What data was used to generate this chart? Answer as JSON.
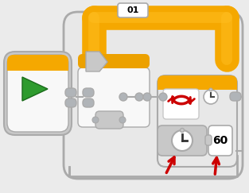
{
  "bg_color": "#ebebeb",
  "orange": "#F5A800",
  "orange_stripe": "#E8A000",
  "gray_light": "#f0f0f0",
  "gray_body": "#e8e8e8",
  "gray_mid": "#c8c8c8",
  "gray_dark": "#aaaaaa",
  "gray_connector": "#b0b4b8",
  "green": "#3A9A3A",
  "red_arrow": "#CC0000",
  "white": "#FFFFFF",
  "title_text": "01",
  "label_text": "60"
}
